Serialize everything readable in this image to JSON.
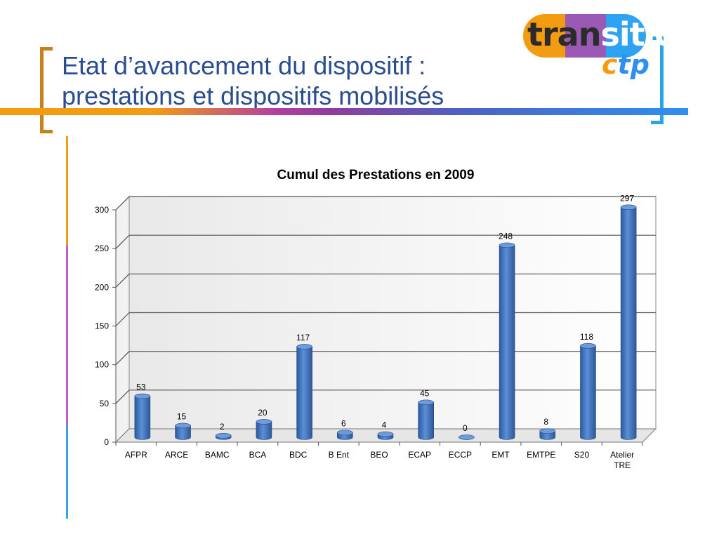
{
  "slide": {
    "title_line1": "Etat d’avancement du dispositif :",
    "title_line2": "prestations et dispositifs mobilisés"
  },
  "logo": {
    "part1": "tran",
    "part2": "sitio",
    "sub1": "c",
    "sub2": "tp",
    "colors": [
      "#f39c12",
      "#9b59b6",
      "#2ea3f2"
    ]
  },
  "chart_data": {
    "type": "bar",
    "title": "Cumul des Prestations en 2009",
    "categories": [
      "AFPR",
      "ARCE",
      "BAMC",
      "BCA",
      "BDC",
      "B Ent",
      "BEO",
      "ECAP",
      "ECCP",
      "EMT",
      "EMTPE",
      "S20",
      "Atelier TRE"
    ],
    "values": [
      53,
      15,
      2,
      20,
      117,
      6,
      4,
      45,
      0,
      248,
      8,
      118,
      297
    ],
    "ylim": [
      0,
      300
    ],
    "yticks": [
      0,
      50,
      100,
      150,
      200,
      250,
      300
    ],
    "grid": true,
    "bar_color": "#3d6fb5"
  }
}
